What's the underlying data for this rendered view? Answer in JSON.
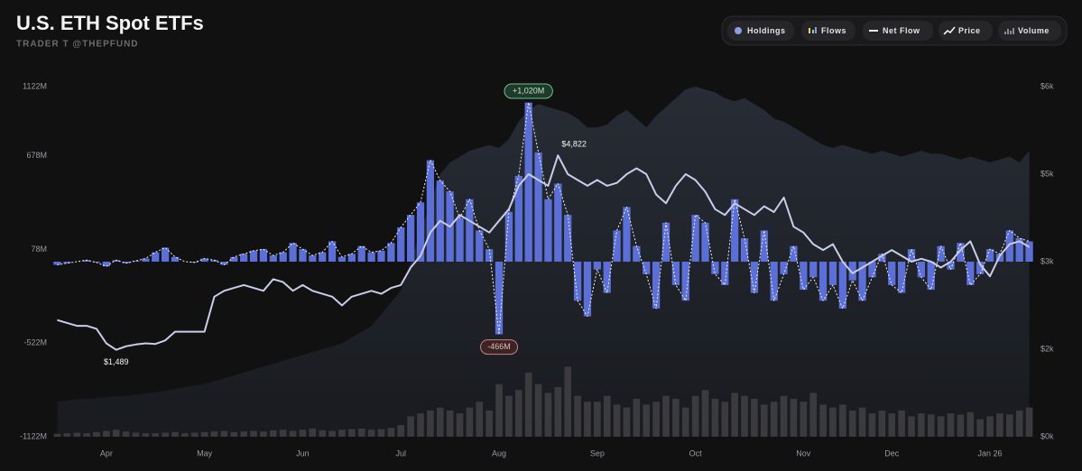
{
  "chart_data": {
    "type": "combo",
    "title": "U.S. ETH Spot ETFs",
    "subtitle": "TRADER T @THEPFUND",
    "categories": [
      null,
      null,
      null,
      null,
      null,
      "Apr",
      null,
      null,
      null,
      null,
      null,
      null,
      null,
      null,
      null,
      "May",
      null,
      null,
      null,
      null,
      null,
      null,
      null,
      null,
      null,
      "Jun",
      null,
      null,
      null,
      null,
      null,
      null,
      null,
      null,
      null,
      "Jul",
      null,
      null,
      null,
      null,
      null,
      null,
      null,
      null,
      null,
      "Aug",
      null,
      null,
      null,
      null,
      null,
      null,
      null,
      null,
      null,
      "Sep",
      null,
      null,
      null,
      null,
      null,
      null,
      null,
      null,
      null,
      "Oct",
      null,
      null,
      null,
      null,
      null,
      null,
      null,
      null,
      null,
      null,
      "Nov",
      null,
      null,
      null,
      null,
      null,
      null,
      null,
      null,
      "Dec",
      null,
      null,
      null,
      null,
      null,
      null,
      null,
      null,
      null,
      "Jan 26",
      null,
      null,
      null,
      null
    ],
    "ylim": [
      -1122,
      1122
    ],
    "yticks": [
      {
        "value": 1122,
        "label": "1122M"
      },
      {
        "value": 678,
        "label": "678M"
      },
      {
        "value": 78,
        "label": "78M"
      },
      {
        "value": -522,
        "label": "-522M"
      },
      {
        "value": -1122,
        "label": "-1122M"
      }
    ],
    "y2lim": [
      0,
      6000
    ],
    "y2ticks": [
      {
        "value": 6000,
        "label": "$6k"
      },
      {
        "value": 4500,
        "label": "$5k"
      },
      {
        "value": 3000,
        "label": "$3k"
      },
      {
        "value": 1500,
        "label": "$2k"
      },
      {
        "value": 0,
        "label": "$0k"
      }
    ],
    "series": [
      {
        "name": "Holdings",
        "kind": "area",
        "axis": "y2",
        "color": "#272c36",
        "values": [
          600,
          620,
          640,
          650,
          660,
          680,
          690,
          700,
          720,
          740,
          760,
          790,
          820,
          850,
          880,
          900,
          950,
          1000,
          1050,
          1100,
          1150,
          1200,
          1250,
          1300,
          1350,
          1400,
          1450,
          1500,
          1550,
          1600,
          1700,
          1800,
          1900,
          2100,
          2300,
          2500,
          3000,
          3500,
          4000,
          4500,
          4700,
          4800,
          4900,
          4950,
          5000,
          4950,
          5100,
          5400,
          5600,
          5700,
          5650,
          5600,
          5550,
          5450,
          5300,
          5300,
          5350,
          5500,
          5600,
          5450,
          5300,
          5500,
          5650,
          5800,
          5950,
          6000,
          5950,
          5900,
          5800,
          5750,
          5800,
          5700,
          5600,
          5450,
          5400,
          5300,
          5200,
          5100,
          5000,
          4950,
          5000,
          4950,
          4900,
          4850,
          4900,
          4850,
          4800,
          4850,
          4900,
          4850,
          4850,
          4800,
          4750,
          4800,
          4750,
          4700,
          4750,
          4800,
          4700,
          4900
        ]
      },
      {
        "name": "Flows",
        "kind": "bar",
        "color": "#5b6fd6",
        "values": [
          -20,
          -10,
          0,
          10,
          -5,
          -30,
          10,
          -10,
          5,
          20,
          60,
          90,
          30,
          0,
          -5,
          20,
          10,
          -20,
          30,
          50,
          70,
          80,
          40,
          60,
          120,
          80,
          40,
          60,
          130,
          30,
          50,
          100,
          60,
          70,
          120,
          220,
          300,
          380,
          650,
          520,
          450,
          280,
          400,
          200,
          80,
          -466,
          320,
          550,
          1020,
          700,
          400,
          500,
          300,
          -250,
          -350,
          -50,
          -200,
          200,
          350,
          100,
          -80,
          -300,
          250,
          -150,
          -250,
          300,
          250,
          -80,
          -150,
          400,
          150,
          -200,
          200,
          -250,
          -80,
          100,
          -180,
          -100,
          -250,
          -150,
          -300,
          -120,
          -250,
          -100,
          50,
          -150,
          -200,
          80,
          -100,
          -180,
          100,
          -50,
          120,
          -150,
          -80,
          80,
          50,
          200,
          150,
          130
        ],
        "value_labels": [
          null,
          null,
          null,
          null,
          null,
          null,
          null,
          null,
          null,
          null,
          null,
          null,
          null,
          null,
          null,
          null,
          null,
          null,
          null,
          null,
          null,
          null,
          null,
          null,
          null,
          null,
          null,
          null,
          null,
          null,
          null,
          null,
          null,
          null,
          null,
          null,
          null,
          null,
          null,
          null,
          null,
          null,
          null,
          null,
          null,
          "-466M",
          null,
          null,
          "+1,020M",
          null,
          null,
          null,
          null,
          null,
          null,
          null,
          null,
          null,
          null,
          null,
          null,
          null,
          null,
          null,
          null,
          null,
          null,
          null,
          null,
          null,
          null,
          null,
          null,
          null,
          null,
          null,
          null,
          null,
          null,
          null,
          null,
          null,
          null,
          null,
          null,
          null,
          null,
          null,
          null,
          null,
          null,
          null,
          null,
          null,
          null,
          null,
          null,
          null,
          null,
          null
        ]
      },
      {
        "name": "Net Flow",
        "kind": "line",
        "color": "#f2f2f2",
        "dashed": true,
        "values": [
          -20,
          -10,
          0,
          10,
          -5,
          -30,
          10,
          -10,
          5,
          20,
          60,
          90,
          30,
          0,
          -5,
          20,
          10,
          -20,
          30,
          50,
          70,
          80,
          40,
          60,
          120,
          80,
          40,
          60,
          130,
          30,
          50,
          100,
          60,
          70,
          120,
          220,
          300,
          380,
          650,
          520,
          450,
          280,
          400,
          200,
          80,
          -466,
          320,
          550,
          1020,
          700,
          400,
          500,
          300,
          -250,
          -350,
          -50,
          -200,
          200,
          350,
          100,
          -80,
          -300,
          250,
          -150,
          -250,
          300,
          250,
          -80,
          -150,
          400,
          150,
          -200,
          200,
          -250,
          -80,
          100,
          -180,
          -100,
          -250,
          -150,
          -300,
          -120,
          -250,
          -100,
          50,
          -150,
          -200,
          80,
          -100,
          -180,
          100,
          -50,
          120,
          -150,
          -80,
          80,
          50,
          200,
          150,
          130
        ]
      },
      {
        "name": "Price",
        "kind": "line",
        "axis": "y2",
        "color": "#c9cdea",
        "values": [
          2000,
          1950,
          1900,
          1900,
          1850,
          1600,
          1489,
          1550,
          1580,
          1600,
          1590,
          1650,
          1800,
          1800,
          1800,
          1800,
          2400,
          2500,
          2550,
          2600,
          2550,
          2500,
          2700,
          2650,
          2500,
          2600,
          2500,
          2450,
          2400,
          2250,
          2400,
          2450,
          2500,
          2450,
          2550,
          2600,
          2900,
          3100,
          3500,
          3700,
          3600,
          3800,
          3700,
          3600,
          3500,
          3700,
          3900,
          4300,
          4500,
          4400,
          4300,
          4822,
          4500,
          4400,
          4300,
          4400,
          4300,
          4350,
          4500,
          4600,
          4500,
          4150,
          4000,
          4300,
          4500,
          4400,
          4200,
          3900,
          3800,
          4000,
          3900,
          3800,
          3950,
          3850,
          4100,
          3600,
          3500,
          3300,
          3200,
          3300,
          3000,
          2800,
          2900,
          3000,
          3100,
          3200,
          3100,
          3000,
          3050,
          3000,
          2900,
          3000,
          3200,
          3350,
          2950,
          2750,
          3100,
          3300,
          3350,
          3250
        ],
        "value_labels": [
          null,
          null,
          null,
          null,
          null,
          null,
          "$1,489",
          null,
          null,
          null,
          null,
          null,
          null,
          null,
          null,
          null,
          null,
          null,
          null,
          null,
          null,
          null,
          null,
          null,
          null,
          null,
          null,
          null,
          null,
          null,
          null,
          null,
          null,
          null,
          null,
          null,
          null,
          null,
          null,
          null,
          null,
          null,
          null,
          null,
          null,
          null,
          null,
          null,
          null,
          null,
          null,
          "$4,822",
          null,
          null,
          null,
          null,
          null,
          null,
          null,
          null,
          null,
          null,
          null,
          null,
          null,
          null,
          null,
          null,
          null,
          null,
          null,
          null,
          null,
          null,
          null,
          null,
          null,
          null,
          null,
          null,
          null,
          null,
          null,
          null,
          null,
          null,
          null,
          null,
          null,
          null,
          null,
          null,
          null,
          null,
          null,
          null,
          null,
          null,
          null,
          null
        ]
      },
      {
        "name": "Volume",
        "kind": "volume",
        "axis": "y2",
        "color": "#3b3b3e",
        "values": [
          50,
          60,
          70,
          60,
          80,
          100,
          120,
          90,
          70,
          60,
          60,
          70,
          80,
          60,
          70,
          80,
          90,
          100,
          80,
          90,
          100,
          90,
          110,
          120,
          100,
          120,
          140,
          110,
          100,
          120,
          130,
          140,
          120,
          130,
          150,
          200,
          350,
          400,
          450,
          500,
          450,
          400,
          500,
          600,
          450,
          900,
          700,
          800,
          1100,
          900,
          750,
          850,
          1200,
          700,
          600,
          600,
          700,
          550,
          500,
          650,
          550,
          600,
          700,
          650,
          500,
          700,
          800,
          650,
          600,
          750,
          700,
          650,
          550,
          600,
          700,
          650,
          600,
          750,
          550,
          500,
          550,
          450,
          500,
          400,
          450,
          400,
          450,
          350,
          400,
          380,
          350,
          400,
          380,
          420,
          300,
          350,
          400,
          380,
          450,
          500
        ]
      }
    ]
  }
}
